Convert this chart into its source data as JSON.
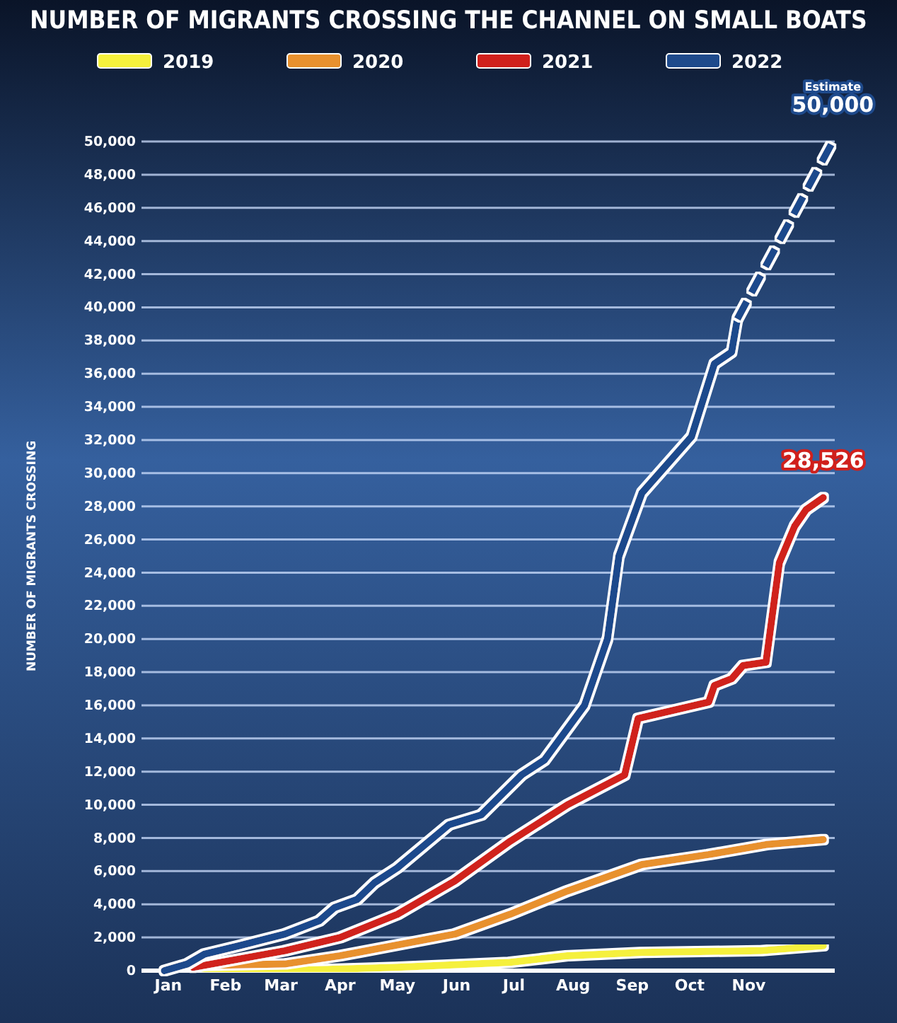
{
  "chart_data": {
    "type": "line",
    "title": "NUMBER OF MIGRANTS CROSSING THE CHANNEL ON SMALL BOATS",
    "ylabel": "NUMBER OF MIGRANTS CROSSING",
    "xlim": [
      "--01-02",
      "--12-31"
    ],
    "xticks": [
      {
        "value": "--01-16",
        "label": "Jan"
      },
      {
        "value": "--02-15",
        "label": "Feb"
      },
      {
        "value": "--03-16",
        "label": "Mar"
      },
      {
        "value": "--04-16",
        "label": "Apr"
      },
      {
        "value": "--05-16",
        "label": "May"
      },
      {
        "value": "--06-16",
        "label": "Jun"
      },
      {
        "value": "--07-16",
        "label": "Jul"
      },
      {
        "value": "--08-16",
        "label": "Aug"
      },
      {
        "value": "--09-16",
        "label": "Sep"
      },
      {
        "value": "--10-16",
        "label": "Oct"
      },
      {
        "value": "--11-16",
        "label": "Nov"
      }
    ],
    "ylim": [
      0,
      50000
    ],
    "yticks": [
      {
        "value": 0,
        "label": "0"
      },
      {
        "value": 2000,
        "label": "2,000"
      },
      {
        "value": 4000,
        "label": "4,000"
      },
      {
        "value": 6000,
        "label": "6,000"
      },
      {
        "value": 8000,
        "label": "8,000"
      },
      {
        "value": 10000,
        "label": "10,000"
      },
      {
        "value": 12000,
        "label": "12,000"
      },
      {
        "value": 14000,
        "label": "14,000"
      },
      {
        "value": 16000,
        "label": "16,000"
      },
      {
        "value": 18000,
        "label": "18,000"
      },
      {
        "value": 20000,
        "label": "20,000"
      },
      {
        "value": 22000,
        "label": "22,000"
      },
      {
        "value": 24000,
        "label": "24,000"
      },
      {
        "value": 26000,
        "label": "26,000"
      },
      {
        "value": 28000,
        "label": "28,000"
      },
      {
        "value": 30000,
        "label": "30,000"
      },
      {
        "value": 32000,
        "label": "32,000"
      },
      {
        "value": 34000,
        "label": "34,000"
      },
      {
        "value": 36000,
        "label": "36,000"
      },
      {
        "value": 38000,
        "label": "38,000"
      },
      {
        "value": 40000,
        "label": "40,000"
      },
      {
        "value": 42000,
        "label": "42,000"
      },
      {
        "value": 44000,
        "label": "44,000"
      },
      {
        "value": 46000,
        "label": "46,000"
      },
      {
        "value": 48000,
        "label": "48,000"
      },
      {
        "value": 50000,
        "label": "50,000"
      }
    ],
    "grid": "y",
    "legend": "top",
    "line_style": "solid",
    "marker": "none",
    "series": [
      {
        "name": "2019",
        "color": "#f5f03c",
        "x": [
          "--01-29",
          "--03-18",
          "--05-16",
          "--07-14",
          "--08-13",
          "--09-21",
          "--11-22",
          "--12-25"
        ],
        "values": [
          0,
          0,
          200,
          500,
          900,
          1100,
          1200,
          1500
        ]
      },
      {
        "name": "2020",
        "color": "#e8912e",
        "x": [
          "--01-29",
          "--03-18",
          "--04-16",
          "--06-15",
          "--07-14",
          "--08-13",
          "--09-21",
          "--10-26",
          "--11-25",
          "--12-25"
        ],
        "values": [
          300,
          400,
          900,
          2200,
          3400,
          4800,
          6400,
          7000,
          7600,
          7900
        ]
      },
      {
        "name": "2021",
        "color": "#d0201c",
        "x": [
          "--01-29",
          "--03-18",
          "--04-16",
          "--05-16",
          "--06-15",
          "--07-14",
          "--08-13",
          "--09-12",
          "--09-19",
          "--10-26",
          "--10-29",
          "--11-07",
          "--11-13",
          "--11-25",
          "--12-02",
          "--12-10",
          "--12-16",
          "--12-25"
        ],
        "values": [
          200,
          1200,
          2000,
          3400,
          5400,
          7800,
          10000,
          11800,
          15200,
          16200,
          17200,
          17600,
          18400,
          18600,
          24600,
          26800,
          27800,
          28526
        ]
      },
      {
        "name": "2022",
        "color": "#1e4a8c",
        "x": [
          "--01-14",
          "--01-26",
          "--02-04",
          "--02-22",
          "--03-18",
          "--04-05",
          "--04-13",
          "--04-25",
          "--05-04",
          "--05-16",
          "--06-12",
          "--06-29",
          "--07-20",
          "--08-01",
          "--08-22",
          "--09-03",
          "--09-09",
          "--09-21",
          "--10-17",
          "--10-29",
          "--11-07",
          "--11-10"
        ],
        "values": [
          0,
          400,
          1000,
          1500,
          2200,
          3000,
          3800,
          4300,
          5300,
          6200,
          8800,
          9400,
          11800,
          12700,
          16000,
          20000,
          25000,
          28800,
          32200,
          36600,
          37300,
          39300
        ]
      },
      {
        "color": "#1e4a8c",
        "line_style": "dashed",
        "x": [
          "--11-10",
          "--12-30"
        ],
        "values": [
          39300,
          50000
        ]
      }
    ],
    "annotations": [
      "Estimate",
      {
        "text": "50,000",
        "x": "--12-30",
        "y": 50000
      },
      {
        "text": "28,526",
        "x": "--12-25",
        "y": 28526
      }
    ]
  }
}
